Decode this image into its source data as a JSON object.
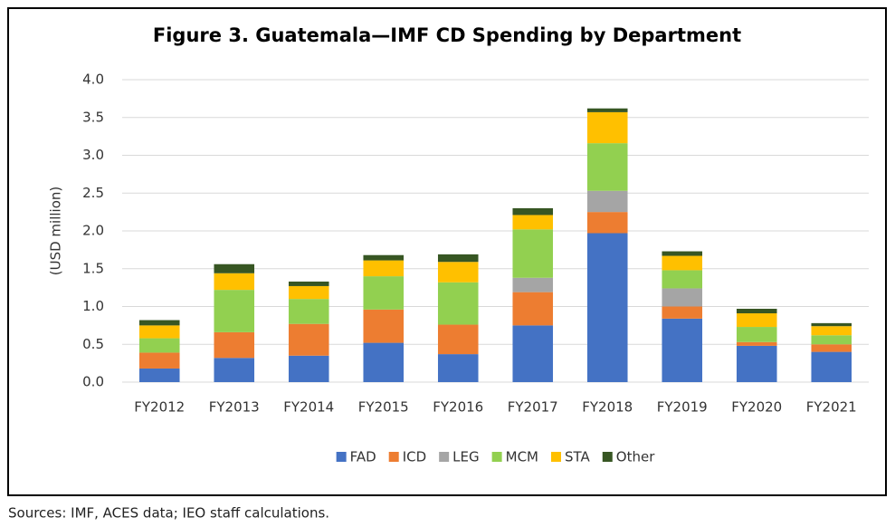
{
  "chart_data": {
    "type": "stacked_bar",
    "title": "Figure 3. Guatemala—IMF CD Spending by Department",
    "y_label": "(USD million)",
    "source": "Sources: IMF, ACES data; IEO staff calculations.",
    "categories": [
      "FY2012",
      "FY2013",
      "FY2014",
      "FY2015",
      "FY2016",
      "FY2017",
      "FY2018",
      "FY2019",
      "FY2020",
      "FY2021"
    ],
    "series": [
      {
        "name": "FAD",
        "color": "#4472c4",
        "values": [
          0.18,
          0.32,
          0.35,
          0.52,
          0.37,
          0.75,
          1.97,
          0.84,
          0.48,
          0.4
        ]
      },
      {
        "name": "ICD",
        "color": "#ed7d31",
        "values": [
          0.21,
          0.34,
          0.42,
          0.44,
          0.39,
          0.44,
          0.28,
          0.16,
          0.05,
          0.1
        ]
      },
      {
        "name": "LEG",
        "color": "#a5a5a5",
        "values": [
          0,
          0,
          0,
          0,
          0,
          0.19,
          0.28,
          0.24,
          0,
          0
        ]
      },
      {
        "name": "MCM",
        "color": "#92d050",
        "values": [
          0.19,
          0.56,
          0.33,
          0.44,
          0.56,
          0.64,
          0.63,
          0.24,
          0.2,
          0.12
        ]
      },
      {
        "name": "STA",
        "color": "#ffc000",
        "values": [
          0.17,
          0.22,
          0.17,
          0.21,
          0.27,
          0.19,
          0.41,
          0.19,
          0.18,
          0.12
        ]
      },
      {
        "name": "Other",
        "color": "#375623",
        "values": [
          0.07,
          0.12,
          0.06,
          0.07,
          0.1,
          0.09,
          0.05,
          0.06,
          0.06,
          0.04
        ]
      }
    ],
    "ylim": [
      0,
      4
    ],
    "yticks": [
      {
        "value": 0,
        "label": "0.0"
      },
      0.5,
      {
        "value": 1,
        "label": "1.0"
      },
      1.5,
      {
        "value": 2,
        "label": "2.0"
      },
      2.5,
      {
        "value": 3,
        "label": "3.0"
      },
      3.5,
      {
        "value": 4,
        "label": "4.0"
      }
    ],
    "grid": true,
    "legend": "bottom"
  }
}
